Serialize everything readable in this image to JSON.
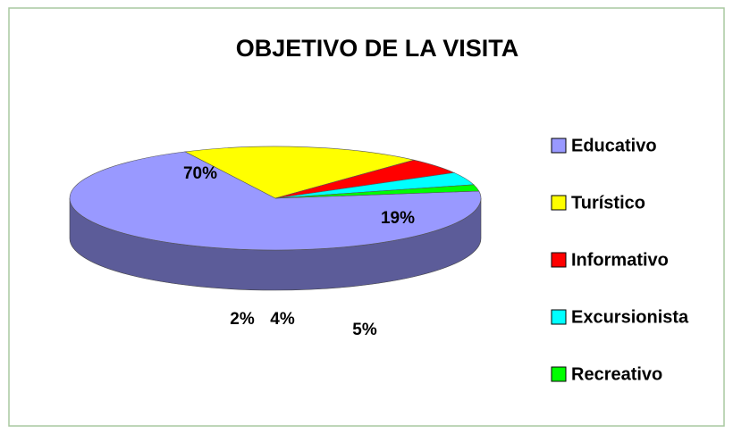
{
  "chart_data": {
    "type": "pie3d",
    "title": "OBJETIVO DE LA VISITA",
    "categories": [
      "Educativo",
      "Turístico",
      "Informativo",
      "Excursionista",
      "Recreativo"
    ],
    "values": [
      70,
      19,
      5,
      4,
      2
    ],
    "value_labels": [
      "70%",
      "19%",
      "5%",
      "4%",
      "2%"
    ],
    "colors": [
      "#9999ff",
      "#ffff00",
      "#ff0000",
      "#00ffff",
      "#00ff00"
    ],
    "legend": "right"
  }
}
